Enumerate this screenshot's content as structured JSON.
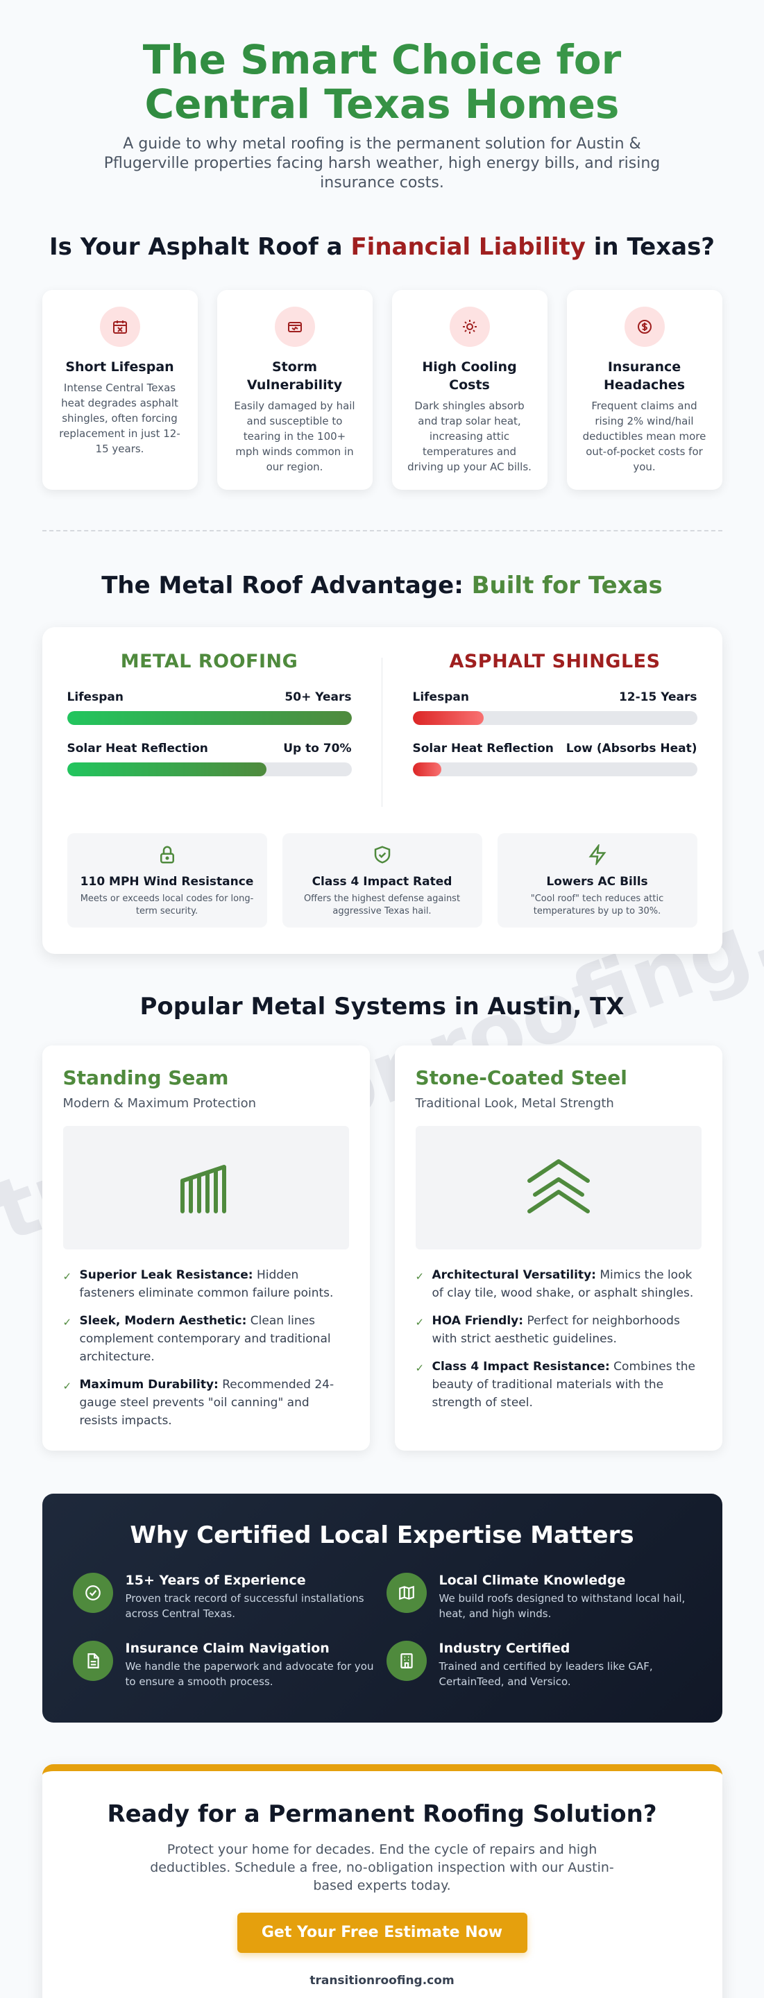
{
  "watermark": "transitionroofing.com",
  "hero": {
    "title": "The Smart Choice for Central Texas Homes",
    "subtitle": "A guide to why metal roofing is the permanent solution for Austin & Pflugerville properties facing harsh weather, high energy bills, and rising insurance costs."
  },
  "problems": {
    "title_pre": "Is Your Asphalt Roof a ",
    "title_highlight": "Financial Liability",
    "title_post": " in Texas?",
    "cards": [
      {
        "icon": "calendar-x-icon",
        "title": "Short Lifespan",
        "text": "Intense Central Texas heat degrades asphalt shingles, often forcing replacement in just 12-15 years."
      },
      {
        "icon": "storm-damage-icon",
        "title": "Storm Vulnerability",
        "text": "Easily damaged by hail and susceptible to tearing in the 100+ mph winds common in our region."
      },
      {
        "icon": "sun-icon",
        "title": "High Cooling Costs",
        "text": "Dark shingles absorb and trap solar heat, increasing attic temperatures and driving up your AC bills."
      },
      {
        "icon": "dollar-icon",
        "title": "Insurance Headaches",
        "text": "Frequent claims and rising 2% wind/hail deductibles mean more out-of-pocket costs for you."
      }
    ]
  },
  "advantage": {
    "title_pre": "The Metal Roof Advantage: ",
    "title_highlight": "Built for Texas",
    "metal": {
      "heading": "METAL ROOFING",
      "metrics": [
        {
          "label": "Lifespan",
          "value": "50+ Years",
          "fill_percent": 100
        },
        {
          "label": "Solar Heat Reflection",
          "value": "Up to 70%",
          "fill_percent": 70
        }
      ]
    },
    "asphalt": {
      "heading": "ASPHALT SHINGLES",
      "metrics": [
        {
          "label": "Lifespan",
          "value": "12-15 Years",
          "fill_percent": 25
        },
        {
          "label": "Solar Heat Reflection",
          "value": "Low (Absorbs Heat)",
          "fill_percent": 10
        }
      ]
    },
    "features": [
      {
        "icon": "lock-icon",
        "title": "110 MPH Wind Resistance",
        "text": "Meets or exceeds local codes for long-term security."
      },
      {
        "icon": "shield-check-icon",
        "title": "Class 4 Impact Rated",
        "text": "Offers the highest defense against aggressive Texas hail."
      },
      {
        "icon": "lightning-icon",
        "title": "Lowers AC Bills",
        "text": "\"Cool roof\" tech reduces attic temperatures by up to 30%."
      }
    ]
  },
  "systems": {
    "title": "Popular Metal Systems in Austin, TX",
    "cards": [
      {
        "title": "Standing Seam",
        "subtitle": "Modern & Maximum Protection",
        "icon": "standing-seam-icon",
        "bullets": [
          {
            "bold": "Superior Leak Resistance:",
            "text": " Hidden fasteners eliminate common failure points."
          },
          {
            "bold": "Sleek, Modern Aesthetic:",
            "text": " Clean lines complement contemporary and traditional architecture."
          },
          {
            "bold": "Maximum Durability:",
            "text": " Recommended 24-gauge steel prevents \"oil canning\" and resists impacts."
          }
        ]
      },
      {
        "title": "Stone-Coated Steel",
        "subtitle": "Traditional Look, Metal Strength",
        "icon": "chevrons-up-icon",
        "bullets": [
          {
            "bold": "Architectural Versatility:",
            "text": " Mimics the look of clay tile, wood shake, or asphalt shingles."
          },
          {
            "bold": "HOA Friendly:",
            "text": " Perfect for neighborhoods with strict aesthetic guidelines."
          },
          {
            "bold": "Class 4 Impact Resistance:",
            "text": " Combines the beauty of traditional materials with the strength of steel."
          }
        ]
      }
    ]
  },
  "expertise": {
    "title": "Why Certified Local Expertise Matters",
    "items": [
      {
        "icon": "check-circle-icon",
        "title": "15+ Years of Experience",
        "text": "Proven track record of successful installations across Central Texas."
      },
      {
        "icon": "map-icon",
        "title": "Local Climate Knowledge",
        "text": "We build roofs designed to withstand local hail, heat, and high winds."
      },
      {
        "icon": "document-icon",
        "title": "Insurance Claim Navigation",
        "text": "We handle the paperwork and advocate for you to ensure a smooth process."
      },
      {
        "icon": "building-icon",
        "title": "Industry Certified",
        "text": "Trained and certified by leaders like GAF, CertainTeed, and Versico."
      }
    ]
  },
  "cta": {
    "title": "Ready for a Permanent Roofing Solution?",
    "text": "Protect your home for decades. End the cycle of repairs and high deductibles. Schedule a free, no-obligation inspection with our Austin-based experts today.",
    "button": "Get Your Free Estimate Now",
    "domain": "transitionroofing.com"
  },
  "colors": {
    "brand_green": "#4f8a3d",
    "danger_red": "#9f1f1f",
    "accent_gold": "#e5a00d",
    "dark_panel": "#1e293b"
  }
}
